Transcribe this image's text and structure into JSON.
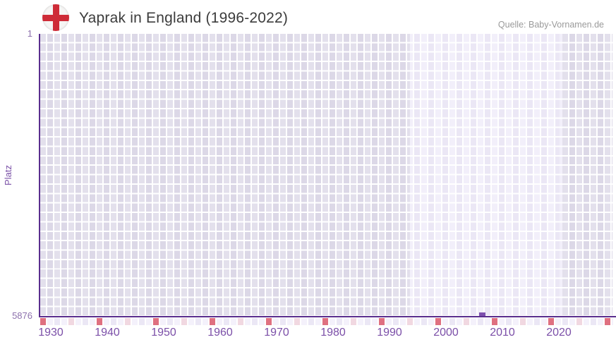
{
  "header": {
    "title": "Yaprak in England (1996-2022)",
    "source": "Quelle: Baby-Vornamen.de",
    "flag": "england-flag"
  },
  "chart_data": {
    "type": "line",
    "title": "Yaprak in England (1996-2022)",
    "xlabel": "",
    "ylabel": "Platz",
    "x_ticks": [
      1930,
      1940,
      1950,
      1960,
      1970,
      1980,
      1990,
      2000,
      2010,
      2020
    ],
    "x_range": [
      1928,
      2030
    ],
    "y_axis": {
      "top_label": "1",
      "bottom_label": "5876",
      "best_rank": 1,
      "worst_rank": 5876,
      "inverted": true
    },
    "highlight_band": {
      "from": 1996,
      "to": 2022
    },
    "series": [
      {
        "name": "Yaprak",
        "points": [
          {
            "year": 2008,
            "rank": 5876
          }
        ]
      }
    ],
    "grid": true,
    "legend": false,
    "colors": {
      "axis_line": "#5a2e8e",
      "x_tick_label": "#7b4fa8",
      "y_tick_label": "#8d71ad",
      "marker": "#7e50ae",
      "grid_cell_dark_a": "#e3e0ec",
      "grid_cell_dark_b": "#dcd8e7",
      "grid_cell_light_a": "#f2effa",
      "grid_cell_light_b": "#ebe7f5",
      "strip_decade_cell": "#df7080",
      "strip_half_decade_cell": "#f1d8e1",
      "flag_red": "#ce2b37",
      "title_text": "#3c3c3c",
      "source_text": "#9a9a9a"
    }
  }
}
